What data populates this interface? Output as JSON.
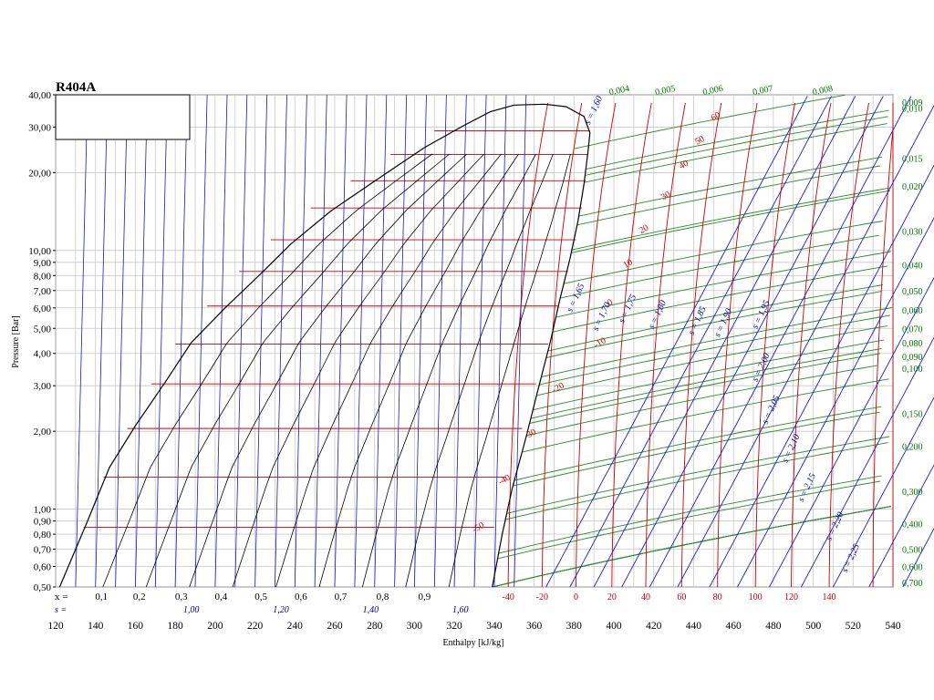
{
  "chart_data": {
    "type": "line",
    "title": "R404A",
    "xlabel": "Enthalpy [kJ/kg]",
    "ylabel": "Pressure [Bar]",
    "xlim": [
      120,
      540
    ],
    "ylim": [
      0.5,
      40
    ],
    "y_scale": "log",
    "grid": true,
    "x_ticks": [
      "120",
      "140",
      "160",
      "180",
      "200",
      "220",
      "240",
      "260",
      "280",
      "300",
      "320",
      "340",
      "360",
      "380",
      "400",
      "420",
      "440",
      "460",
      "480",
      "500",
      "520",
      "540"
    ],
    "y_ticks": [
      {
        "v": 0.5,
        "label": "0,50"
      },
      {
        "v": 0.6,
        "label": "0,60"
      },
      {
        "v": 0.7,
        "label": "0,70"
      },
      {
        "v": 0.8,
        "label": "0,80"
      },
      {
        "v": 0.9,
        "label": "0,90"
      },
      {
        "v": 1.0,
        "label": "1,00"
      },
      {
        "v": 2.0,
        "label": "2,00"
      },
      {
        "v": 3.0,
        "label": "3,00"
      },
      {
        "v": 4.0,
        "label": "4,00"
      },
      {
        "v": 5.0,
        "label": "5,00"
      },
      {
        "v": 6.0,
        "label": "6,00"
      },
      {
        "v": 7.0,
        "label": "7,00"
      },
      {
        "v": 8.0,
        "label": "8,00"
      },
      {
        "v": 9.0,
        "label": "9,00"
      },
      {
        "v": 10.0,
        "label": "10,00"
      },
      {
        "v": 20.0,
        "label": "20,00"
      },
      {
        "v": 30.0,
        "label": "30,00"
      },
      {
        "v": 40.0,
        "label": "40,00"
      }
    ],
    "quality_row_prefix": "x =",
    "quality_labels": [
      {
        "h": 143,
        "label": "0,1"
      },
      {
        "h": 162,
        "label": "0,2"
      },
      {
        "h": 183,
        "label": "0,3"
      },
      {
        "h": 203,
        "label": "0,4"
      },
      {
        "h": 223,
        "label": "0,5"
      },
      {
        "h": 243,
        "label": "0,6"
      },
      {
        "h": 263,
        "label": "0,7"
      },
      {
        "h": 284,
        "label": "0,8"
      },
      {
        "h": 305,
        "label": "0,9"
      }
    ],
    "entropy_row_prefix": "s =",
    "entropy_row_labels": [
      {
        "h": 188,
        "label": "1,00"
      },
      {
        "h": 233,
        "label": "1,20"
      },
      {
        "h": 278,
        "label": "1,40"
      },
      {
        "h": 323,
        "label": "1,60"
      }
    ],
    "temperature_row_labels": [
      {
        "h": 347,
        "label": "-40"
      },
      {
        "h": 364,
        "label": "-20"
      },
      {
        "h": 381,
        "label": "0"
      },
      {
        "h": 399,
        "label": "20"
      },
      {
        "h": 416,
        "label": "40"
      },
      {
        "h": 434,
        "label": "60"
      },
      {
        "h": 452,
        "label": "80"
      },
      {
        "h": 471,
        "label": "100"
      },
      {
        "h": 489,
        "label": "120"
      },
      {
        "h": 508,
        "label": "140"
      }
    ],
    "dome_temperature_labels": [
      {
        "h": 393,
        "p": 4.4,
        "label": "-10"
      },
      {
        "h": 372,
        "p": 2.95,
        "label": "-20"
      },
      {
        "h": 358,
        "p": 1.95,
        "label": "-30"
      },
      {
        "h": 345,
        "p": 1.3,
        "label": "-40"
      },
      {
        "h": 332,
        "p": 0.85,
        "label": "-50"
      },
      {
        "h": 398,
        "p": 6.3,
        "label": "0"
      },
      {
        "h": 407,
        "p": 8.9,
        "label": "10"
      },
      {
        "h": 415,
        "p": 12.1,
        "label": "20"
      },
      {
        "h": 426,
        "p": 16.3,
        "label": "30"
      },
      {
        "h": 435,
        "p": 21.5,
        "label": "40"
      },
      {
        "h": 443,
        "p": 26.7,
        "label": "50"
      },
      {
        "h": 451,
        "p": 33.0,
        "label": "60"
      }
    ],
    "isentrope_labels": [
      {
        "h": 382,
        "p": 6.5,
        "label": "s = 1,65"
      },
      {
        "h": 391,
        "p": 34.5,
        "label": "s = 1,60"
      },
      {
        "h": 395,
        "p": 5.5,
        "label": "s = 1,70"
      },
      {
        "h": 408,
        "p": 5.9,
        "label": "s = 1,75"
      },
      {
        "h": 423,
        "p": 5.6,
        "label": "s = 1,80"
      },
      {
        "h": 443,
        "p": 5.3,
        "label": "s = 1,85"
      },
      {
        "h": 456,
        "p": 5.2,
        "label": "s = 1,90"
      },
      {
        "h": 475,
        "p": 5.6,
        "label": "s = 1,95"
      },
      {
        "h": 475,
        "p": 3.5,
        "label": "s = 2,00"
      },
      {
        "h": 480,
        "p": 2.4,
        "label": "s = 2,05"
      },
      {
        "h": 490,
        "p": 1.7,
        "label": "s = 2,10"
      },
      {
        "h": 498,
        "p": 1.2,
        "label": "s = 2,15"
      },
      {
        "h": 512,
        "p": 0.85,
        "label": "s = 2,20"
      },
      {
        "h": 520,
        "p": 0.64,
        "label": "s = 2,25"
      }
    ],
    "isochore_labels_right": [
      {
        "p": 37.5,
        "label": "0,009"
      },
      {
        "p": 35.5,
        "label": "0,010"
      },
      {
        "p": 22.8,
        "label": "0,015"
      },
      {
        "p": 17.8,
        "label": "0,020"
      },
      {
        "p": 11.9,
        "label": "0,030"
      },
      {
        "p": 8.8,
        "label": "0,040"
      },
      {
        "p": 7.0,
        "label": "0,050"
      },
      {
        "p": 5.9,
        "label": "0,060"
      },
      {
        "p": 5.0,
        "label": "0,070"
      },
      {
        "p": 4.4,
        "label": "0,080"
      },
      {
        "p": 3.9,
        "label": "0,090"
      },
      {
        "p": 3.5,
        "label": "0,100"
      },
      {
        "p": 2.35,
        "label": "0,150"
      },
      {
        "p": 1.75,
        "label": "0,200"
      },
      {
        "p": 1.17,
        "label": "0,300"
      },
      {
        "p": 0.88,
        "label": "0,400"
      },
      {
        "p": 0.7,
        "label": "0,500"
      },
      {
        "p": 0.6,
        "label": "0,600"
      },
      {
        "p": 0.52,
        "label": "0,700"
      }
    ],
    "isochore_labels_top": [
      {
        "h": 403,
        "label": "0,004"
      },
      {
        "h": 426,
        "label": "0,005"
      },
      {
        "h": 450,
        "label": "0,006"
      },
      {
        "h": 475,
        "label": "0,007"
      },
      {
        "h": 505,
        "label": "0,008"
      }
    ],
    "saturation_liquid": [
      [
        122,
        0.5
      ],
      [
        136,
        0.9
      ],
      [
        147,
        1.45
      ],
      [
        160,
        2.1
      ],
      [
        175,
        3.1
      ],
      [
        188,
        4.4
      ],
      [
        205,
        6.0
      ],
      [
        222,
        8.0
      ],
      [
        238,
        10.6
      ],
      [
        258,
        14.2
      ],
      [
        282,
        19.0
      ],
      [
        305,
        25.0
      ],
      [
        325,
        30.5
      ],
      [
        338,
        34.4
      ],
      [
        350,
        36.5
      ]
    ],
    "saturation_vapor": [
      [
        339,
        0.5
      ],
      [
        344,
        0.8
      ],
      [
        349,
        1.2
      ],
      [
        356,
        1.9
      ],
      [
        362,
        2.9
      ],
      [
        368,
        4.4
      ],
      [
        373,
        6.5
      ],
      [
        378,
        9.3
      ],
      [
        382,
        13.0
      ],
      [
        385,
        18.0
      ],
      [
        387,
        24.0
      ],
      [
        388,
        28.5
      ],
      [
        385,
        33.0
      ],
      [
        376,
        36.0
      ],
      [
        365,
        36.8
      ],
      [
        350,
        36.5
      ]
    ],
    "isotherm_liquid_region": [
      {
        "t": "-50",
        "p": 0.85,
        "h_from": 134,
        "h_to": 340
      },
      {
        "t": "-40",
        "p": 1.33,
        "h_from": 144,
        "h_to": 346
      },
      {
        "t": "-30",
        "p": 2.05,
        "h_from": 156,
        "h_to": 354
      },
      {
        "t": "-20",
        "p": 3.05,
        "h_from": 168,
        "h_to": 361
      },
      {
        "t": "-10",
        "p": 4.35,
        "h_from": 180,
        "h_to": 367
      },
      {
        "t": "0",
        "p": 6.1,
        "h_from": 196,
        "h_to": 372
      },
      {
        "t": "10",
        "p": 8.3,
        "h_from": 212,
        "h_to": 377
      },
      {
        "t": "20",
        "p": 11.0,
        "h_from": 228,
        "h_to": 381
      },
      {
        "t": "30",
        "p": 14.6,
        "h_from": 248,
        "h_to": 384
      },
      {
        "t": "40",
        "p": 18.6,
        "h_from": 268,
        "h_to": 386
      },
      {
        "t": "50",
        "p": 23.5,
        "h_from": 288,
        "h_to": 387
      },
      {
        "t": "60",
        "p": 29.0,
        "h_from": 310,
        "h_to": 388
      }
    ]
  }
}
